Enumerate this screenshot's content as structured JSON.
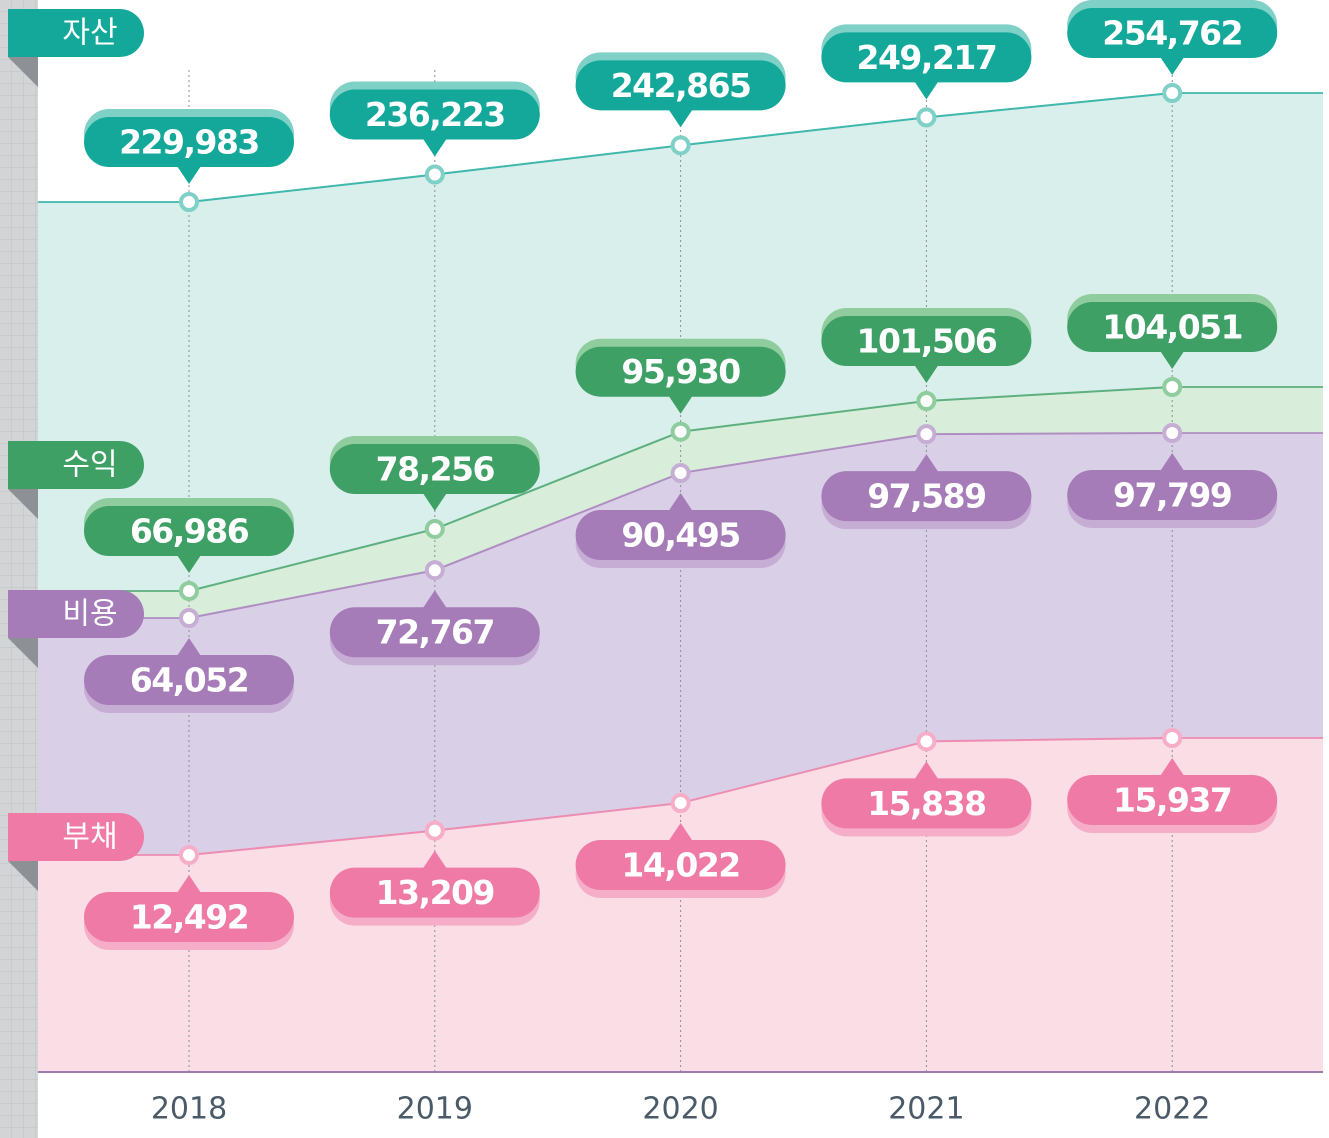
{
  "chart_data": {
    "type": "area",
    "categories": [
      "2018",
      "2019",
      "2020",
      "2021",
      "2022"
    ],
    "series": [
      {
        "name": "자산",
        "color": "#14a89b",
        "values": [
          229983,
          236223,
          242865,
          249217,
          254762
        ],
        "value_labels": [
          "229,983",
          "236,223",
          "242,865",
          "249,217",
          "254,762"
        ]
      },
      {
        "name": "수익",
        "color": "#3fa066",
        "values": [
          66986,
          78256,
          95930,
          101506,
          104051
        ],
        "value_labels": [
          "66,986",
          "78,256",
          "95,930",
          "101,506",
          "104,051"
        ]
      },
      {
        "name": "비용",
        "color": "#a57bb8",
        "values": [
          64052,
          72767,
          90495,
          97589,
          97799
        ],
        "value_labels": [
          "64,052",
          "72,767",
          "90,495",
          "97,589",
          "97,799"
        ]
      },
      {
        "name": "부채",
        "color": "#ee7aa5",
        "values": [
          12492,
          13209,
          14022,
          15838,
          15937
        ],
        "value_labels": [
          "12,492",
          "13,209",
          "14,022",
          "15,838",
          "15,937"
        ]
      }
    ]
  }
}
